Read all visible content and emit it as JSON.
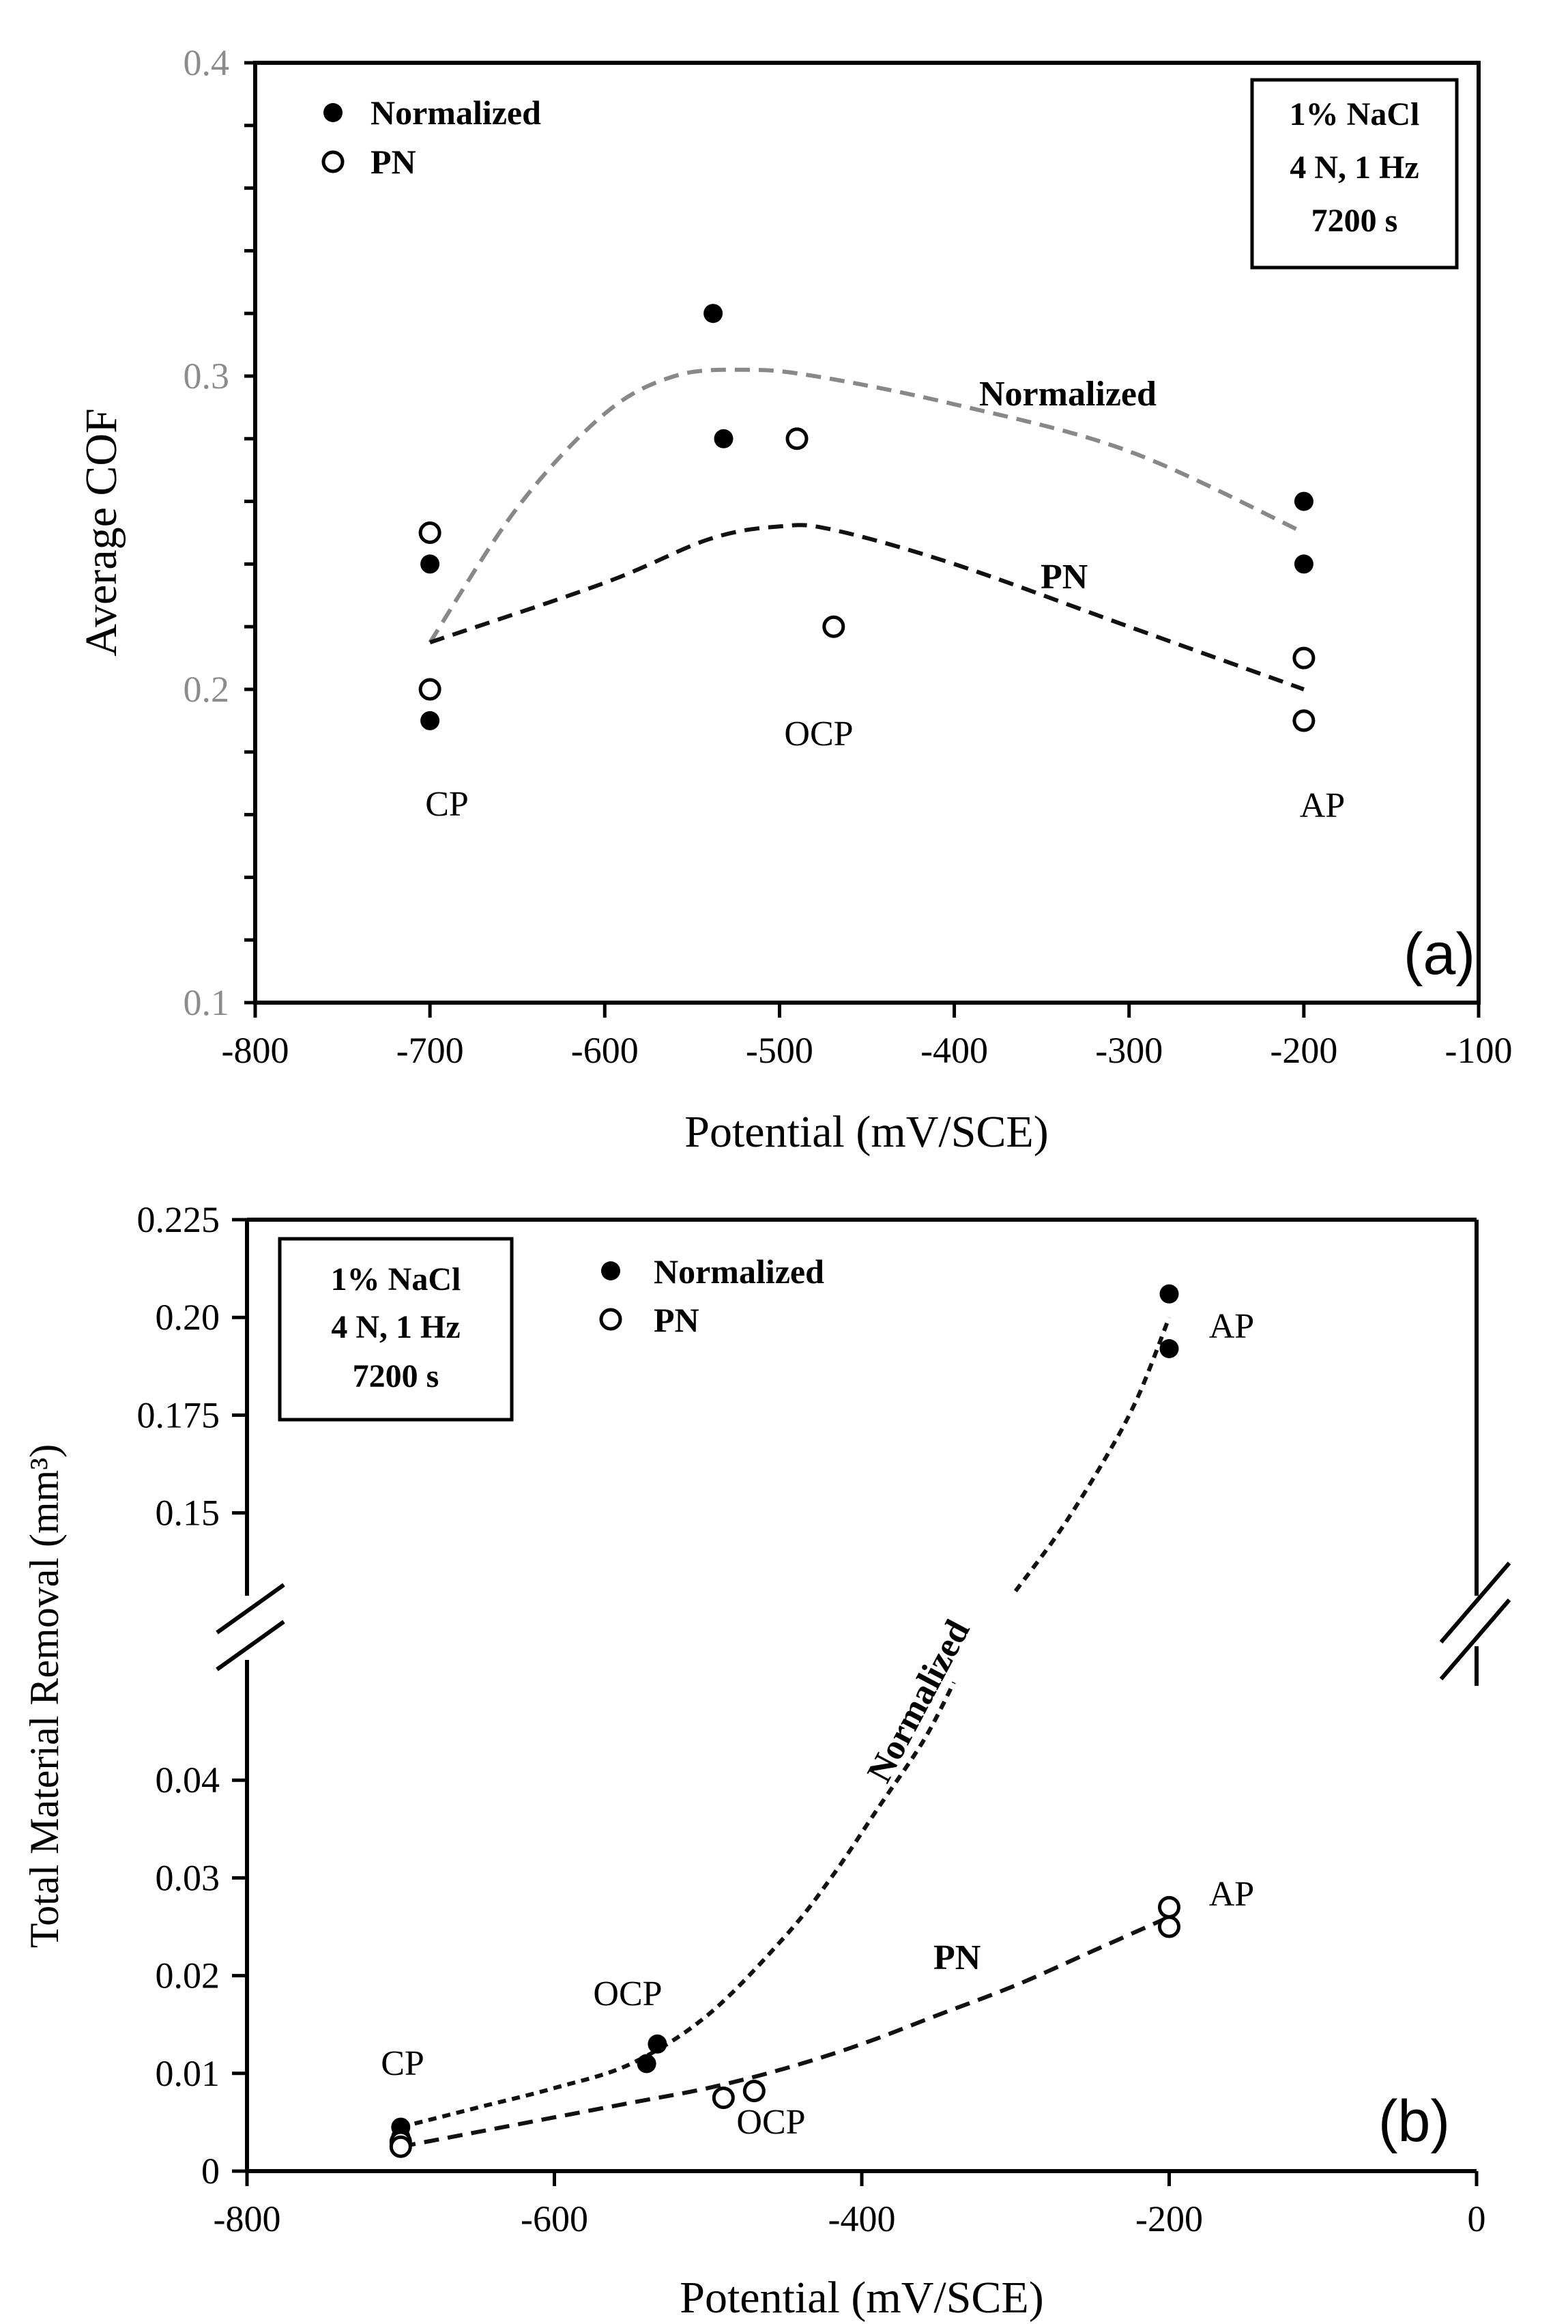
{
  "chart_data": [
    {
      "type": "scatter",
      "panel_label": "(a)",
      "xlabel": "Potential (mV/SCE)",
      "ylabel": "Average COF",
      "xlim": [
        -800,
        -100
      ],
      "ylim": [
        0.1,
        0.4
      ],
      "x_ticks": [
        "-800",
        "-700",
        "-600",
        "-500",
        "-400",
        "-300",
        "-200",
        "-100"
      ],
      "y_ticks": [
        "0.1",
        "0.2",
        "0.3",
        "0.4"
      ],
      "legend": {
        "placement": "top-left",
        "entries": [
          "Normalized",
          "PN"
        ]
      },
      "conditions": [
        "1% NaCl",
        "4 N, 1 Hz",
        "7200 s"
      ],
      "series": [
        {
          "name": "Normalized",
          "marker": "filled-circle",
          "points": [
            [
              -700,
              0.24
            ],
            [
              -700,
              0.19
            ],
            [
              -538,
              0.32
            ],
            [
              -532,
              0.28
            ],
            [
              -200,
              0.26
            ],
            [
              -200,
              0.24
            ]
          ]
        },
        {
          "name": "PN",
          "marker": "open-circle",
          "points": [
            [
              -700,
              0.25
            ],
            [
              -700,
              0.2
            ],
            [
              -490,
              0.28
            ],
            [
              -469,
              0.22
            ],
            [
              -200,
              0.21
            ],
            [
              -200,
              0.19
            ]
          ]
        }
      ],
      "trend_lines": [
        {
          "name": "Normalized",
          "label": "Normalized",
          "color": "#888888",
          "points": [
            [
              -700,
              0.215
            ],
            [
              -650,
              0.258
            ],
            [
              -600,
              0.288
            ],
            [
              -560,
              0.3
            ],
            [
              -520,
              0.302
            ],
            [
              -480,
              0.3
            ],
            [
              -400,
              0.291
            ],
            [
              -300,
              0.276
            ],
            [
              -200,
              0.25
            ]
          ]
        },
        {
          "name": "PN",
          "label": "PN",
          "color": "#111111",
          "points": [
            [
              -700,
              0.215
            ],
            [
              -600,
              0.234
            ],
            [
              -540,
              0.248
            ],
            [
              -500,
              0.252
            ],
            [
              -470,
              0.251
            ],
            [
              -400,
              0.24
            ],
            [
              -300,
              0.22
            ],
            [
              -200,
              0.2
            ]
          ]
        }
      ],
      "annotations": [
        {
          "text": "CP",
          "x": -700,
          "y": 0.175
        },
        {
          "text": "OCP",
          "x": -469,
          "y": 0.18
        },
        {
          "text": "AP",
          "x": -200,
          "y": 0.175
        }
      ]
    },
    {
      "type": "scatter",
      "panel_label": "(b)",
      "xlabel": "Potential (mV/SCE)",
      "ylabel": "Total Material Removal (mm³)",
      "xlim": [
        -800,
        0
      ],
      "y_axis_break": {
        "lower_range": [
          0,
          0.05
        ],
        "upper_range": [
          0.13,
          0.225
        ]
      },
      "x_ticks": [
        "-800",
        "-600",
        "-400",
        "-200",
        "0"
      ],
      "y_ticks_lower": [
        "0",
        "0.01",
        "0.02",
        "0.03",
        "0.04"
      ],
      "y_ticks_upper": [
        "0.15",
        "0.175",
        "0.20",
        "0.225"
      ],
      "legend": {
        "placement": "top-center",
        "entries": [
          "Normalized",
          "PN"
        ]
      },
      "conditions": [
        "1% NaCl",
        "4 N, 1 Hz",
        "7200 s"
      ],
      "series": [
        {
          "name": "Normalized",
          "marker": "filled-circle",
          "points": [
            [
              -700,
              0.0045
            ],
            [
              -700,
              0.0035
            ],
            [
              -540,
              0.011
            ],
            [
              -533,
              0.013
            ],
            [
              -200,
              0.206
            ],
            [
              -200,
              0.192
            ]
          ]
        },
        {
          "name": "PN",
          "marker": "open-circle",
          "points": [
            [
              -700,
              0.003
            ],
            [
              -700,
              0.0025
            ],
            [
              -490,
              0.0075
            ],
            [
              -470,
              0.0082
            ],
            [
              -200,
              0.027
            ],
            [
              -200,
              0.025
            ]
          ]
        }
      ],
      "trend_lines": [
        {
          "name": "Normalized",
          "label": "Normalized",
          "color": "#111111",
          "points_lower": [
            [
              -700,
              0.0045
            ],
            [
              -650,
              0.0065
            ],
            [
              -600,
              0.0085
            ],
            [
              -550,
              0.011
            ],
            [
              -500,
              0.016
            ],
            [
              -450,
              0.024
            ],
            [
              -420,
              0.03
            ],
            [
              -390,
              0.037
            ],
            [
              -360,
              0.044
            ],
            [
              -340,
              0.05
            ]
          ],
          "points_upper": [
            [
              -300,
              0.13
            ],
            [
              -270,
              0.146
            ],
            [
              -240,
              0.165
            ],
            [
              -220,
              0.18
            ],
            [
              -200,
              0.2
            ]
          ]
        },
        {
          "name": "PN",
          "label": "PN",
          "color": "#111111",
          "points": [
            [
              -700,
              0.0025
            ],
            [
              -650,
              0.004
            ],
            [
              -600,
              0.0055
            ],
            [
              -550,
              0.007
            ],
            [
              -500,
              0.0085
            ],
            [
              -450,
              0.0105
            ],
            [
              -400,
              0.013
            ],
            [
              -350,
              0.016
            ],
            [
              -300,
              0.019
            ],
            [
              -250,
              0.0225
            ],
            [
              -200,
              0.026
            ]
          ]
        }
      ],
      "annotations": [
        {
          "text": "CP",
          "x": -700,
          "y": 0.0098
        },
        {
          "text": "OCP",
          "x": -535,
          "y": 0.0167
        },
        {
          "text": "OCP",
          "x": -465,
          "y": 0.0042
        },
        {
          "text": "AP",
          "x": -160,
          "y": 0.025
        },
        {
          "text": "AP",
          "x": -160,
          "y": 0.2
        }
      ]
    }
  ]
}
